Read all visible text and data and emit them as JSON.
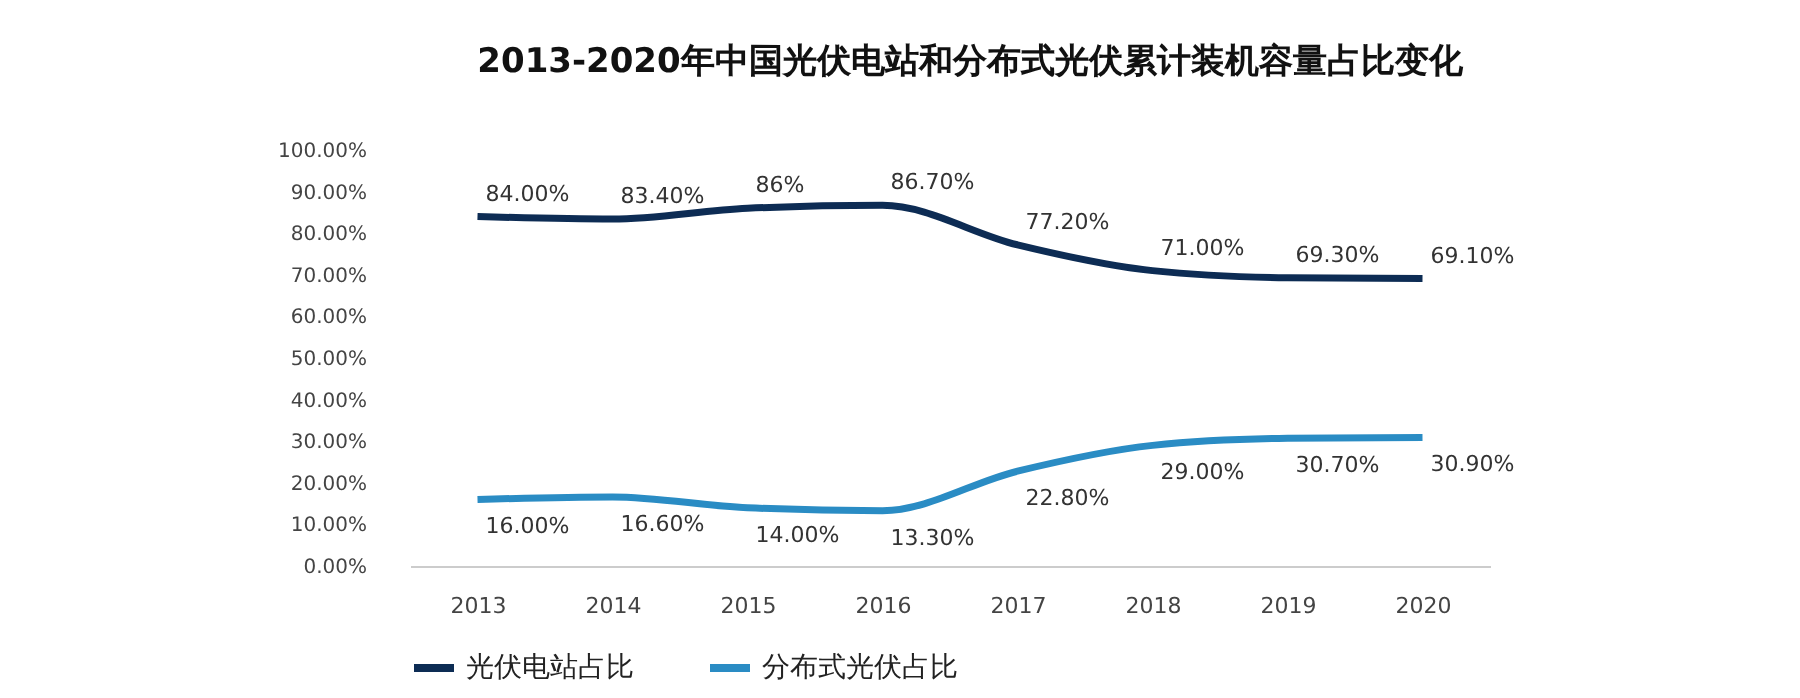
{
  "chart_data": {
    "type": "line",
    "title": "2013-2020年中国光伏电站和分布式光伏累计装机容量占比变化",
    "categories": [
      "2013",
      "2014",
      "2015",
      "2016",
      "2017",
      "2018",
      "2019",
      "2020"
    ],
    "series": [
      {
        "name": "光伏电站占比",
        "color": "#0d2c54",
        "values": [
          84.0,
          83.4,
          86.0,
          86.7,
          77.2,
          71.0,
          69.3,
          69.1
        ],
        "value_labels": [
          "84.00%",
          "83.40%",
          "86%",
          "86.70%",
          "77.20%",
          "71.00%",
          "69.30%",
          "69.10%"
        ]
      },
      {
        "name": "分布式光伏占比",
        "color": "#2a8cc4",
        "values": [
          16.0,
          16.6,
          14.0,
          13.3,
          22.8,
          29.0,
          30.7,
          30.9
        ],
        "value_labels": [
          "16.00%",
          "16.60%",
          "14.00%",
          "13.30%",
          "22.80%",
          "29.00%",
          "30.70%",
          "30.90%"
        ]
      }
    ],
    "ylim": [
      0,
      100
    ],
    "yticks": [
      {
        "value": 0,
        "label": "0.00%"
      },
      {
        "value": 10,
        "label": "10.00%"
      },
      {
        "value": 20,
        "label": "20.00%"
      },
      {
        "value": 30,
        "label": "30.00%"
      },
      {
        "value": 40,
        "label": "40.00%"
      },
      {
        "value": 50,
        "label": "50.00%"
      },
      {
        "value": 60,
        "label": "60.00%"
      },
      {
        "value": 70,
        "label": "70.00%"
      },
      {
        "value": 80,
        "label": "80.00%"
      },
      {
        "value": 90,
        "label": "90.00%"
      },
      {
        "value": 100,
        "label": "100.00%"
      }
    ],
    "grid": false,
    "legend": "bottom",
    "marker": "none",
    "line_style": "solid"
  }
}
